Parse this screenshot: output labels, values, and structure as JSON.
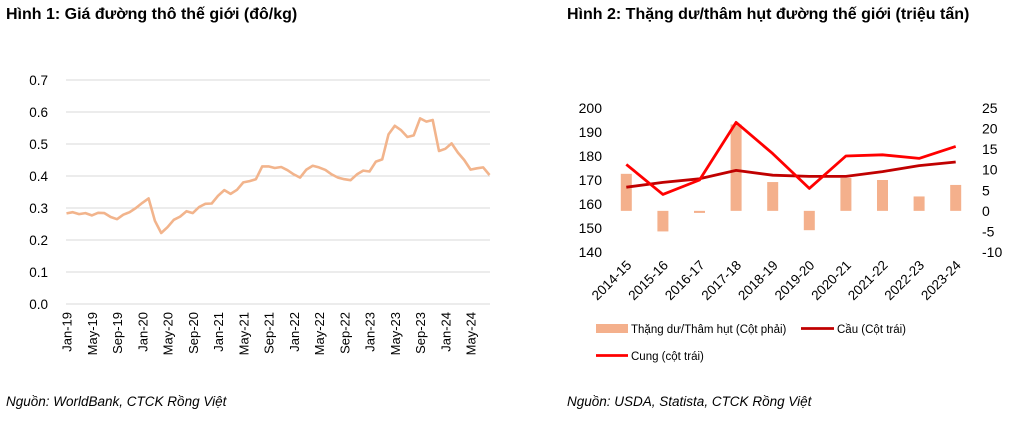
{
  "figure1": {
    "title": "Hình 1: Giá đường thô thế giới (đô/kg)",
    "source": "Nguồn: WorldBank, CTCK Rồng Việt"
  },
  "figure2": {
    "title": "Hình 2: Thặng dư/thâm hụt đường thế giới (triệu tấn)",
    "source": "Nguồn: USDA, Statista, CTCK Rồng Việt"
  },
  "colors": {
    "price_line": "#F2B48C",
    "surplus_bar": "#F4B08C",
    "demand_line": "#C00000",
    "supply_line": "#FF0000",
    "grid": "#D9D9D9"
  },
  "chart_data": [
    {
      "type": "line",
      "ylim": [
        0,
        0.7
      ],
      "y_ticks": [
        "0.0",
        "0.1",
        "0.2",
        "0.3",
        "0.4",
        "0.5",
        "0.6",
        "0.7"
      ],
      "x_tick_labels": [
        "Jan-19",
        "May-19",
        "Sep-19",
        "Jan-20",
        "May-20",
        "Sep-20",
        "Jan-21",
        "May-21",
        "Sep-21",
        "Jan-22",
        "May-22",
        "Sep-22",
        "Jan-23",
        "May-23",
        "Sep-23",
        "Jan-24",
        "May-24"
      ],
      "grid": "horizontal",
      "series": [
        {
          "values": [
            0.283,
            0.287,
            0.281,
            0.284,
            0.277,
            0.285,
            0.284,
            0.272,
            0.265,
            0.279,
            0.287,
            0.3,
            0.316,
            0.33,
            0.26,
            0.222,
            0.24,
            0.263,
            0.273,
            0.29,
            0.284,
            0.303,
            0.313,
            0.314,
            0.338,
            0.356,
            0.344,
            0.357,
            0.38,
            0.384,
            0.39,
            0.43,
            0.43,
            0.425,
            0.428,
            0.418,
            0.405,
            0.395,
            0.42,
            0.432,
            0.427,
            0.419,
            0.405,
            0.395,
            0.39,
            0.387,
            0.405,
            0.417,
            0.414,
            0.445,
            0.452,
            0.53,
            0.557,
            0.543,
            0.522,
            0.527,
            0.58,
            0.57,
            0.575,
            0.478,
            0.485,
            0.502,
            0.473,
            0.45,
            0.42,
            0.424,
            0.427,
            0.403
          ]
        }
      ]
    },
    {
      "type": "bar",
      "categories": [
        "2014-15",
        "2015-16",
        "2016-17",
        "2017-18",
        "2018-19",
        "2019-20",
        "2020-21",
        "2021-22",
        "2022-23",
        "2023-24"
      ],
      "y_left": {
        "ylim": [
          140,
          200
        ],
        "ticks": [
          "140",
          "150",
          "160",
          "170",
          "180",
          "190",
          "200"
        ]
      },
      "y_right": {
        "ylim": [
          -10,
          25
        ],
        "ticks": [
          "-10",
          "-5",
          "0",
          "5",
          "10",
          "15",
          "20",
          "25"
        ]
      },
      "legend_position": "bottom",
      "series": [
        {
          "name": "Thặng dư/Thâm hụt (Cột phải)",
          "type": "bar",
          "axis": "right",
          "values": [
            9,
            -5,
            -0.5,
            21,
            7,
            -4.7,
            8,
            7.5,
            3.5,
            6.3
          ]
        },
        {
          "name": "Cầu (Cột trái)",
          "type": "line",
          "axis": "left",
          "values": [
            167,
            169,
            170.5,
            174,
            172,
            171.5,
            171.5,
            173.5,
            176,
            177.5
          ]
        },
        {
          "name": "Cung (cột trái)",
          "type": "line",
          "axis": "left",
          "values": [
            176.5,
            164,
            170,
            194,
            181,
            166.5,
            180,
            180.5,
            179,
            184
          ]
        }
      ]
    }
  ]
}
